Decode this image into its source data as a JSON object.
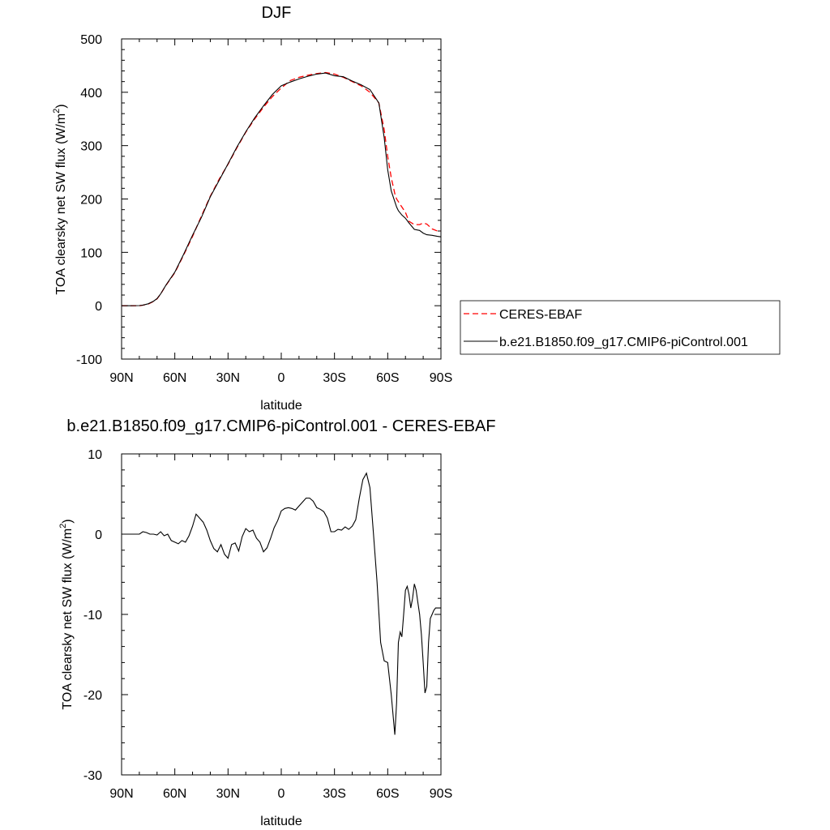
{
  "chart_data": [
    {
      "type": "line",
      "title": "DJF",
      "xlabel": "latitude",
      "ylabel": "TOA clearsky net SW flux (W/m",
      "ylabel_sup": "2",
      "ylabel_close": ")",
      "xlim": [
        90,
        -90
      ],
      "ylim": [
        -100,
        500
      ],
      "x_ticks": [
        90,
        60,
        30,
        0,
        -30,
        -60,
        -90
      ],
      "x_tick_labels": [
        "90N",
        "60N",
        "30N",
        "0",
        "30S",
        "60S",
        "90S"
      ],
      "y_ticks": [
        -100,
        0,
        100,
        200,
        300,
        400,
        500
      ],
      "y_tick_labels": [
        "-100",
        "0",
        "100",
        "200",
        "300",
        "400",
        "500"
      ],
      "legend_position": "right",
      "series": [
        {
          "name": "CERES-EBAF",
          "color": "#ff0000",
          "dash": "dashed",
          "x": [
            90,
            85,
            80,
            78,
            75,
            72,
            70,
            68,
            65,
            60,
            55,
            50,
            45,
            40,
            35,
            30,
            25,
            20,
            15,
            10,
            5,
            0,
            -5,
            -10,
            -15,
            -20,
            -25,
            -30,
            -35,
            -40,
            -45,
            -50,
            -55,
            -58,
            -60,
            -62,
            -64,
            -65,
            -66,
            -68,
            -70,
            -72,
            -75,
            -78,
            -80,
            -82,
            -85,
            -88,
            -90
          ],
          "y": [
            0,
            0,
            0,
            1,
            3,
            8,
            13,
            22,
            38,
            62,
            95,
            130,
            168,
            205,
            237,
            265,
            296,
            325,
            350,
            372,
            392,
            408,
            422,
            428,
            432,
            435,
            437,
            434,
            428,
            420,
            412,
            400,
            380,
            330,
            280,
            240,
            210,
            200,
            195,
            185,
            175,
            158,
            152,
            152,
            155,
            153,
            144,
            140,
            140
          ]
        },
        {
          "name": "b.e21.B1850.f09_g17.CMIP6-piControl.001",
          "color": "#000000",
          "dash": "solid",
          "x": [
            90,
            85,
            80,
            78,
            75,
            72,
            70,
            68,
            65,
            60,
            55,
            50,
            45,
            40,
            35,
            30,
            25,
            20,
            15,
            10,
            5,
            0,
            -5,
            -10,
            -15,
            -20,
            -25,
            -30,
            -35,
            -40,
            -45,
            -50,
            -55,
            -58,
            -60,
            -62,
            -64,
            -65,
            -66,
            -68,
            -70,
            -72,
            -75,
            -78,
            -80,
            -82,
            -85,
            -88,
            -90
          ],
          "y": [
            0,
            0,
            0.3,
            1.2,
            3.6,
            8.5,
            13.5,
            22.2,
            38.5,
            63,
            96.5,
            132.3,
            165.5,
            204,
            235,
            266,
            297.3,
            326,
            352,
            374.5,
            396,
            412,
            419,
            425,
            430,
            434,
            436,
            431,
            429,
            421,
            414,
            405,
            380,
            315,
            255,
            215,
            195,
            185,
            178,
            170,
            164,
            155,
            143,
            141,
            136,
            133,
            132,
            130,
            129
          ]
        }
      ]
    },
    {
      "type": "line",
      "title": "b.e21.B1850.f09_g17.CMIP6-piControl.001 - CERES-EBAF",
      "xlabel": "latitude",
      "ylabel": "TOA clearsky net SW flux (W/m",
      "ylabel_sup": "2",
      "ylabel_close": ")",
      "xlim": [
        90,
        -90
      ],
      "ylim": [
        -30,
        10
      ],
      "x_ticks": [
        90,
        60,
        30,
        0,
        -30,
        -60,
        -90
      ],
      "x_tick_labels": [
        "90N",
        "60N",
        "30N",
        "0",
        "30S",
        "60S",
        "90S"
      ],
      "y_ticks": [
        -30,
        -20,
        -10,
        0,
        10
      ],
      "y_tick_labels": [
        "-30",
        "-20",
        "-10",
        "0",
        "10"
      ],
      "series": [
        {
          "color": "#000000",
          "dash": "solid",
          "x": [
            90,
            85,
            80,
            78,
            76,
            74,
            72,
            70,
            68,
            66,
            64,
            62,
            60,
            58,
            56,
            54,
            52,
            50,
            48,
            46,
            44,
            42,
            40,
            38,
            36,
            34,
            32,
            30,
            28,
            26,
            24,
            22,
            20,
            18,
            16,
            14,
            12,
            10,
            8,
            6,
            4,
            2,
            0,
            -2,
            -4,
            -6,
            -8,
            -10,
            -12,
            -14,
            -16,
            -18,
            -20,
            -22,
            -24,
            -26,
            -28,
            -30,
            -32,
            -34,
            -36,
            -38,
            -40,
            -42,
            -44,
            -46,
            -48,
            -50,
            -52,
            -54,
            -56,
            -58,
            -60,
            -62,
            -64,
            -65,
            -66,
            -67,
            -68,
            -69,
            -70,
            -71,
            -72,
            -73,
            -74,
            -75,
            -76,
            -77,
            -78,
            -79,
            -80,
            -81,
            -82,
            -83,
            -84,
            -85,
            -86,
            -87,
            -88,
            -89,
            -90
          ],
          "y": [
            0,
            0,
            0,
            0.3,
            0.2,
            0,
            0,
            -0.1,
            0.3,
            -0.2,
            0,
            -0.8,
            -1.0,
            -1.2,
            -0.8,
            -1.0,
            -0.2,
            1.0,
            2.5,
            2.0,
            1.5,
            0.5,
            -0.8,
            -1.8,
            -2.2,
            -1.3,
            -2.5,
            -3.0,
            -1.3,
            -1.1,
            -2.1,
            -0.3,
            0.7,
            0.3,
            0.5,
            -0.5,
            -1.0,
            -2.2,
            -1.7,
            -0.5,
            0.8,
            1.7,
            2.9,
            3.2,
            3.3,
            3.2,
            3.0,
            3.5,
            4.0,
            4.5,
            4.5,
            4.1,
            3.3,
            3.1,
            2.8,
            2.0,
            0.3,
            0.3,
            0.6,
            0.5,
            0.9,
            0.6,
            1.0,
            1.8,
            4.5,
            6.8,
            7.6,
            5.8,
            0.0,
            -6.0,
            -13.5,
            -15.8,
            -16.0,
            -20.0,
            -25.0,
            -21.0,
            -13.5,
            -12.2,
            -12.8,
            -10.0,
            -7.0,
            -6.5,
            -7.5,
            -9.2,
            -8.0,
            -6.2,
            -7.0,
            -8.5,
            -10.0,
            -12.5,
            -16.0,
            -19.8,
            -19.0,
            -13.5,
            -10.5,
            -10.0,
            -9.5,
            -9.2,
            -9.2,
            -9.2,
            -9.2
          ]
        }
      ]
    }
  ]
}
